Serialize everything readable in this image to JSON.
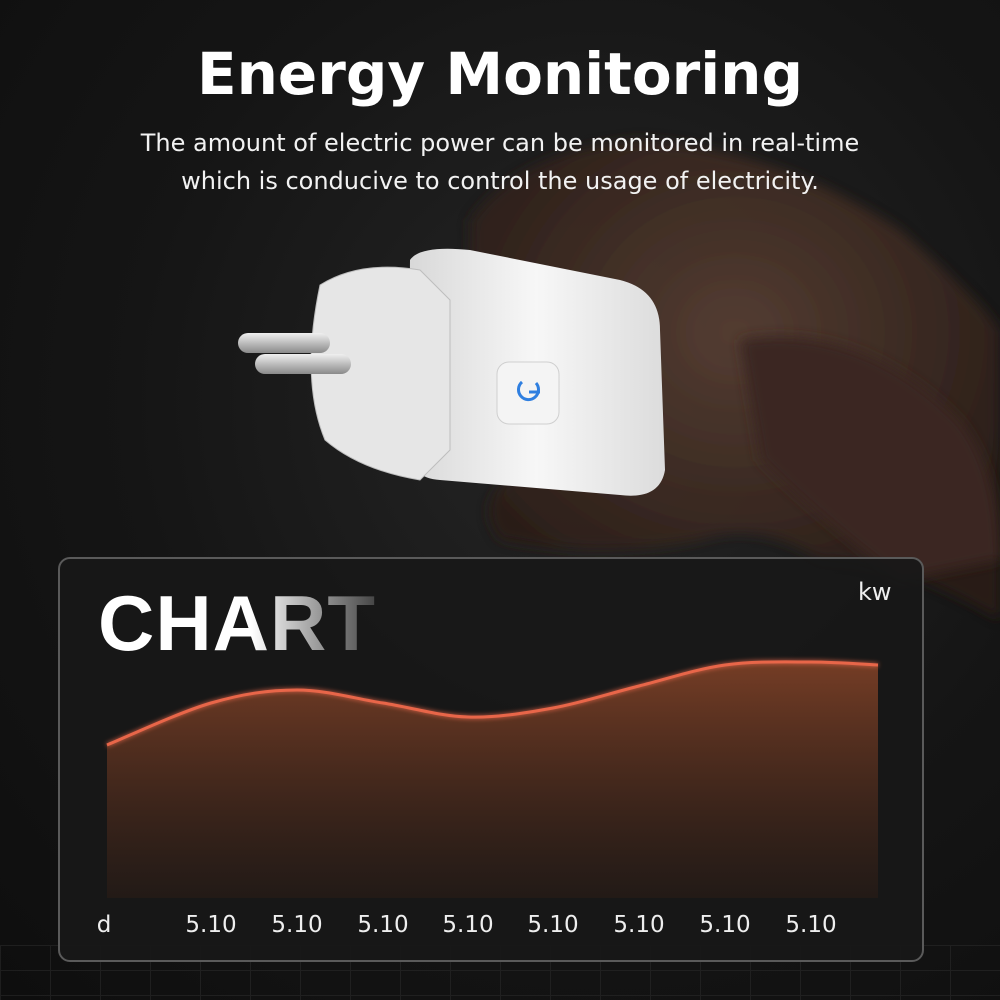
{
  "header": {
    "title": "Energy Monitoring",
    "subtitle_line1": "The amount of electric power can be monitored in real-time",
    "subtitle_line2": "which is conducive to control the usage of electricity."
  },
  "product": {
    "button_icon": "power-icon",
    "accent": "#2f7fe0"
  },
  "chart_data": {
    "type": "area",
    "title": "CHART",
    "ylabel": "kw",
    "xlabel": "d",
    "x_tick_labels": [
      "5.10",
      "5.10",
      "5.10",
      "5.10",
      "5.10",
      "5.10",
      "5.10",
      "5.10"
    ],
    "values": [
      153,
      195,
      208,
      195,
      181,
      190,
      212,
      233,
      236,
      233
    ],
    "ylim": [
      0,
      300
    ],
    "grid": false,
    "line_color": "#e8664a"
  }
}
